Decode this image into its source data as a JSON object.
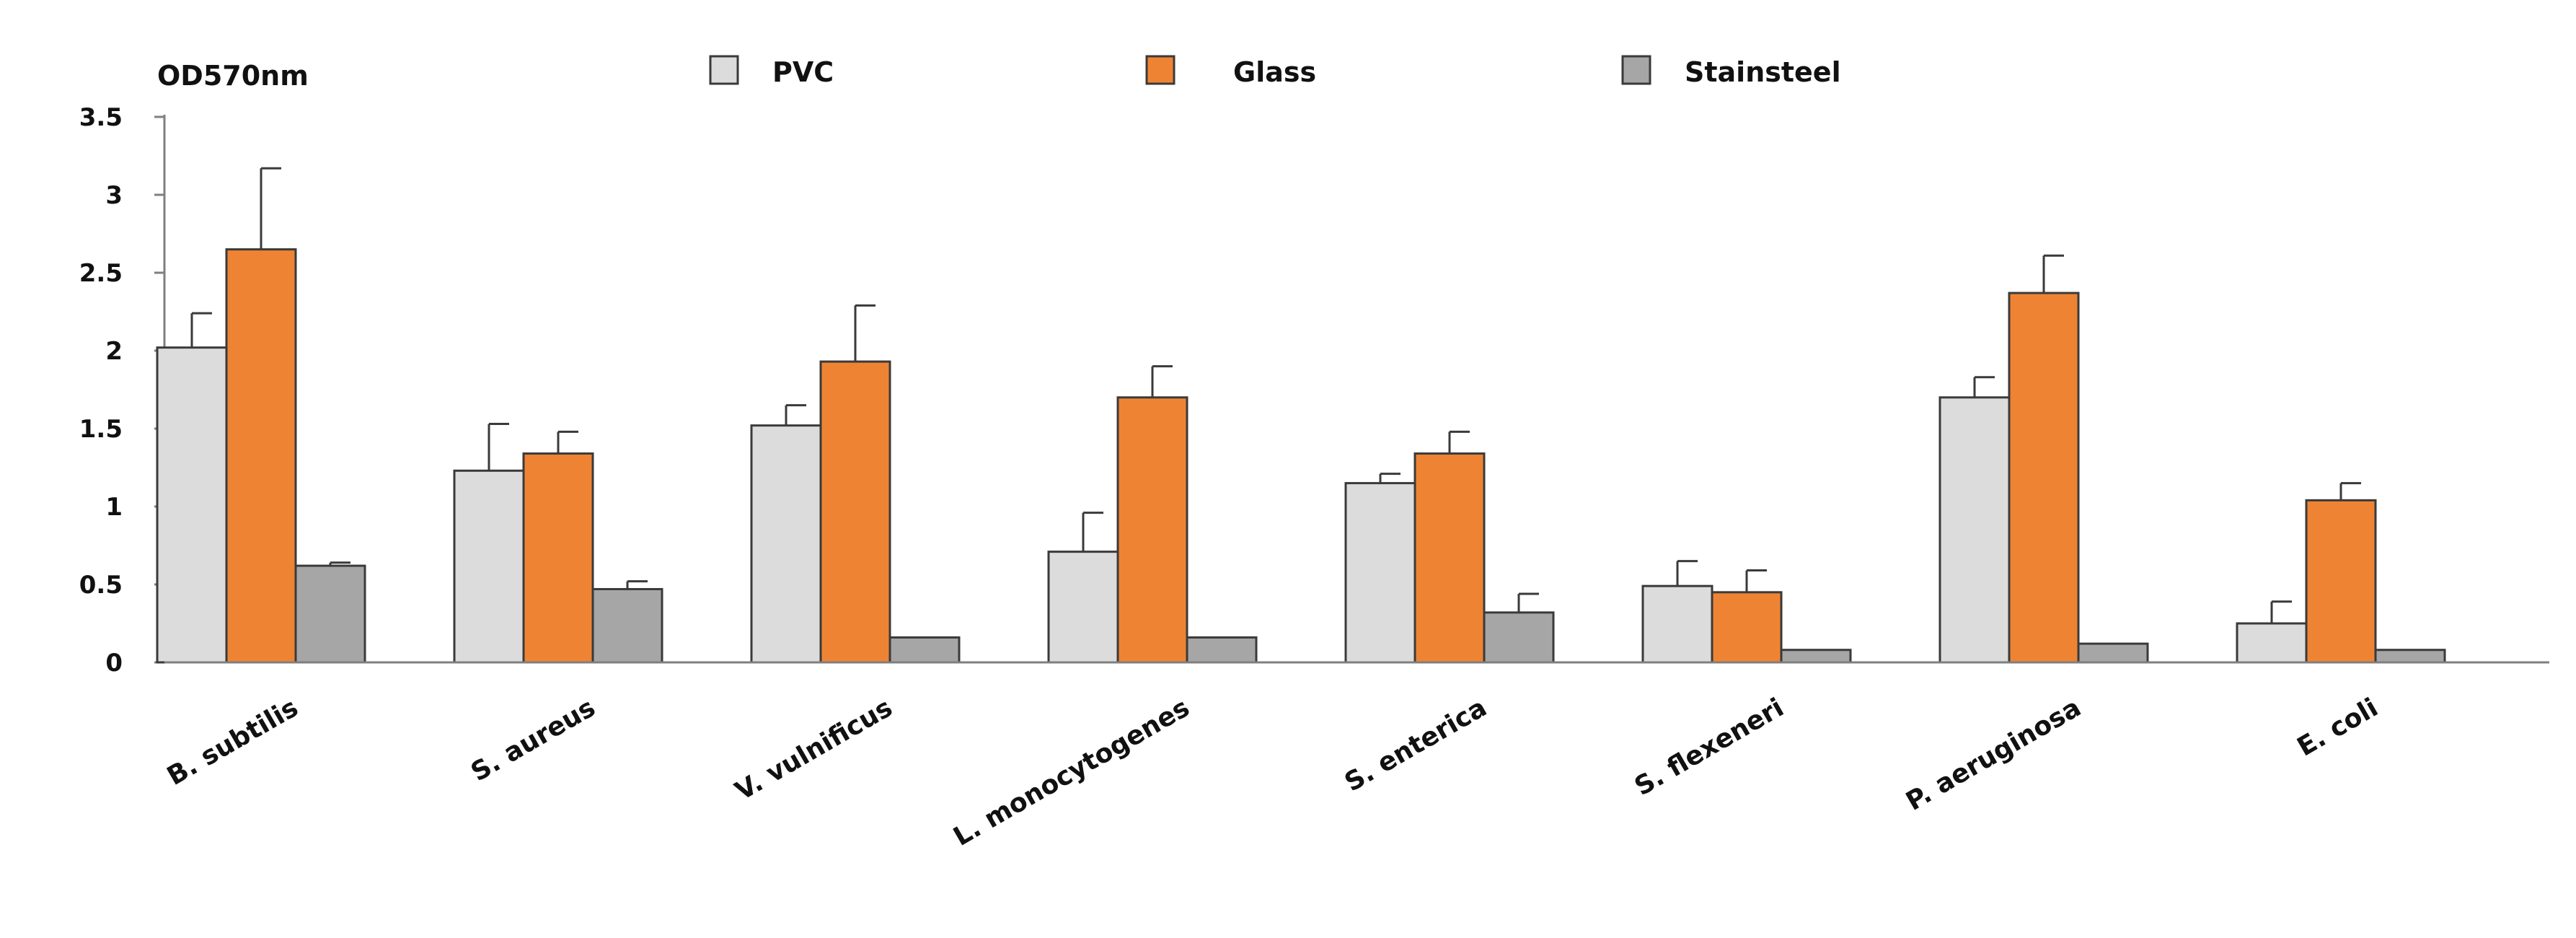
{
  "chart_data": {
    "type": "bar",
    "ylabel": "OD570nm",
    "ylim": [
      0,
      3.5
    ],
    "yticks": [
      "0",
      "0.5",
      "1",
      "1.5",
      "2",
      "2.5",
      "3",
      "3.5"
    ],
    "ytick_values": [
      0,
      0.5,
      1,
      1.5,
      2,
      2.5,
      3,
      3.5
    ],
    "categories": [
      "B. subtilis",
      "S. aureus",
      "V. vulnificus",
      "L. monocytogenes",
      "S. enterica",
      "S. flexeneri",
      "P. aeruginosa",
      "E. coli"
    ],
    "legend_position": "top",
    "series": [
      {
        "name": "PVC",
        "color": "#dcdcdc",
        "values": [
          2.02,
          1.23,
          1.52,
          0.71,
          1.15,
          0.49,
          1.7,
          0.25
        ],
        "errors": [
          0.22,
          0.3,
          0.13,
          0.25,
          0.06,
          0.16,
          0.13,
          0.14
        ]
      },
      {
        "name": "Glass",
        "color": "#ee8433",
        "values": [
          2.65,
          1.34,
          1.93,
          1.7,
          1.34,
          0.45,
          2.37,
          1.04
        ],
        "errors": [
          0.52,
          0.14,
          0.36,
          0.2,
          0.14,
          0.14,
          0.24,
          0.11
        ]
      },
      {
        "name": "Stainsteel",
        "color": "#a6a6a6",
        "values": [
          0.62,
          0.47,
          0.16,
          0.16,
          0.32,
          0.08,
          0.12,
          0.08
        ],
        "errors": [
          0.02,
          0.05,
          0.0,
          0.0,
          0.12,
          0.0,
          0.0,
          0.0
        ]
      }
    ]
  }
}
